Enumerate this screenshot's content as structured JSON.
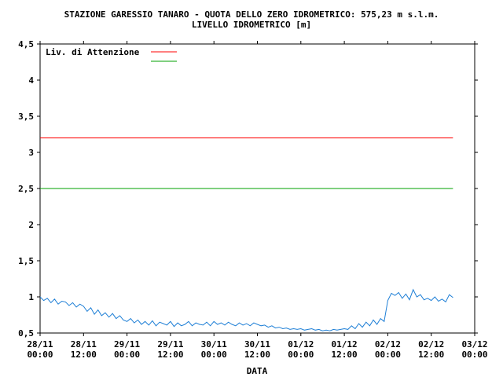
{
  "chart_data": {
    "type": "line",
    "title": "STAZIONE GARESSIO TANARO - QUOTA DELLO ZERO IDROMETRICO: 575,23 m s.l.m.",
    "subtitle": "LIVELLO IDROMETRICO [m]",
    "xlabel": "DATA",
    "ylabel": "",
    "ylim": [
      0.5,
      4.5
    ],
    "yticks": [
      "0,5",
      "1",
      "1,5",
      "2",
      "2,5",
      "3",
      "3,5",
      "4",
      "4,5"
    ],
    "ytick_values": [
      0.5,
      1,
      1.5,
      2,
      2.5,
      3,
      3.5,
      4,
      4.5
    ],
    "xlim_hours": [
      0,
      120
    ],
    "xticks": [
      {
        "hours": 0,
        "date": "28/11",
        "time": "00:00"
      },
      {
        "hours": 12,
        "date": "28/11",
        "time": "12:00"
      },
      {
        "hours": 24,
        "date": "29/11",
        "time": "00:00"
      },
      {
        "hours": 36,
        "date": "29/11",
        "time": "12:00"
      },
      {
        "hours": 48,
        "date": "30/11",
        "time": "00:00"
      },
      {
        "hours": 60,
        "date": "30/11",
        "time": "12:00"
      },
      {
        "hours": 72,
        "date": "01/12",
        "time": "00:00"
      },
      {
        "hours": 84,
        "date": "01/12",
        "time": "12:00"
      },
      {
        "hours": 96,
        "date": "02/12",
        "time": "00:00"
      },
      {
        "hours": 108,
        "date": "02/12",
        "time": "12:00"
      },
      {
        "hours": 120,
        "date": "03/12",
        "time": "00:00"
      }
    ],
    "legend": {
      "placement": "top-left",
      "entries": [
        {
          "label": "Liv. di Attenzione",
          "color": "#ff0000"
        },
        {
          "label": "",
          "color": "#00a000"
        }
      ]
    },
    "thresholds": [
      {
        "label": "Liv. di Attenzione",
        "value": 3.2,
        "color": "#ff0000"
      },
      {
        "label": "",
        "value": 2.5,
        "color": "#00a000"
      }
    ],
    "grid": false,
    "series": [
      {
        "color": "#1e7fd6",
        "x_hours": [
          0,
          1,
          2,
          3,
          4,
          5,
          6,
          7,
          8,
          9,
          10,
          11,
          12,
          13,
          14,
          15,
          16,
          17,
          18,
          19,
          20,
          21,
          22,
          23,
          24,
          25,
          26,
          27,
          28,
          29,
          30,
          31,
          32,
          33,
          34,
          35,
          36,
          37,
          38,
          39,
          40,
          41,
          42,
          43,
          44,
          45,
          46,
          47,
          48,
          49,
          50,
          51,
          52,
          53,
          54,
          55,
          56,
          57,
          58,
          59,
          60,
          61,
          62,
          63,
          64,
          65,
          66,
          67,
          68,
          69,
          70,
          71,
          72,
          73,
          74,
          75,
          76,
          77,
          78,
          79,
          80,
          81,
          82,
          83,
          84,
          85,
          86,
          87,
          88,
          89,
          90,
          91,
          92,
          93,
          94,
          95,
          96,
          97,
          98,
          99,
          100,
          101,
          102,
          103,
          104,
          105,
          106,
          107,
          108,
          109,
          110,
          111,
          112,
          113,
          114
        ],
        "values": [
          1.0,
          0.95,
          0.98,
          0.92,
          0.97,
          0.9,
          0.94,
          0.93,
          0.88,
          0.92,
          0.86,
          0.9,
          0.87,
          0.8,
          0.85,
          0.76,
          0.82,
          0.74,
          0.78,
          0.72,
          0.77,
          0.7,
          0.74,
          0.68,
          0.66,
          0.7,
          0.64,
          0.68,
          0.62,
          0.66,
          0.61,
          0.67,
          0.6,
          0.65,
          0.63,
          0.61,
          0.66,
          0.59,
          0.64,
          0.6,
          0.62,
          0.66,
          0.6,
          0.64,
          0.62,
          0.61,
          0.65,
          0.6,
          0.66,
          0.62,
          0.64,
          0.61,
          0.65,
          0.62,
          0.6,
          0.64,
          0.61,
          0.63,
          0.6,
          0.64,
          0.62,
          0.6,
          0.61,
          0.58,
          0.6,
          0.57,
          0.58,
          0.56,
          0.57,
          0.55,
          0.56,
          0.55,
          0.56,
          0.54,
          0.55,
          0.56,
          0.54,
          0.55,
          0.53,
          0.54,
          0.53,
          0.55,
          0.54,
          0.55,
          0.56,
          0.55,
          0.6,
          0.56,
          0.63,
          0.58,
          0.65,
          0.6,
          0.68,
          0.62,
          0.7,
          0.66,
          0.95,
          1.05,
          1.02,
          1.06,
          0.98,
          1.04,
          0.96,
          1.1,
          1.0,
          1.03,
          0.96,
          0.98,
          0.95,
          1.0,
          0.94,
          0.97,
          0.93,
          1.03,
          0.99
        ]
      }
    ]
  }
}
